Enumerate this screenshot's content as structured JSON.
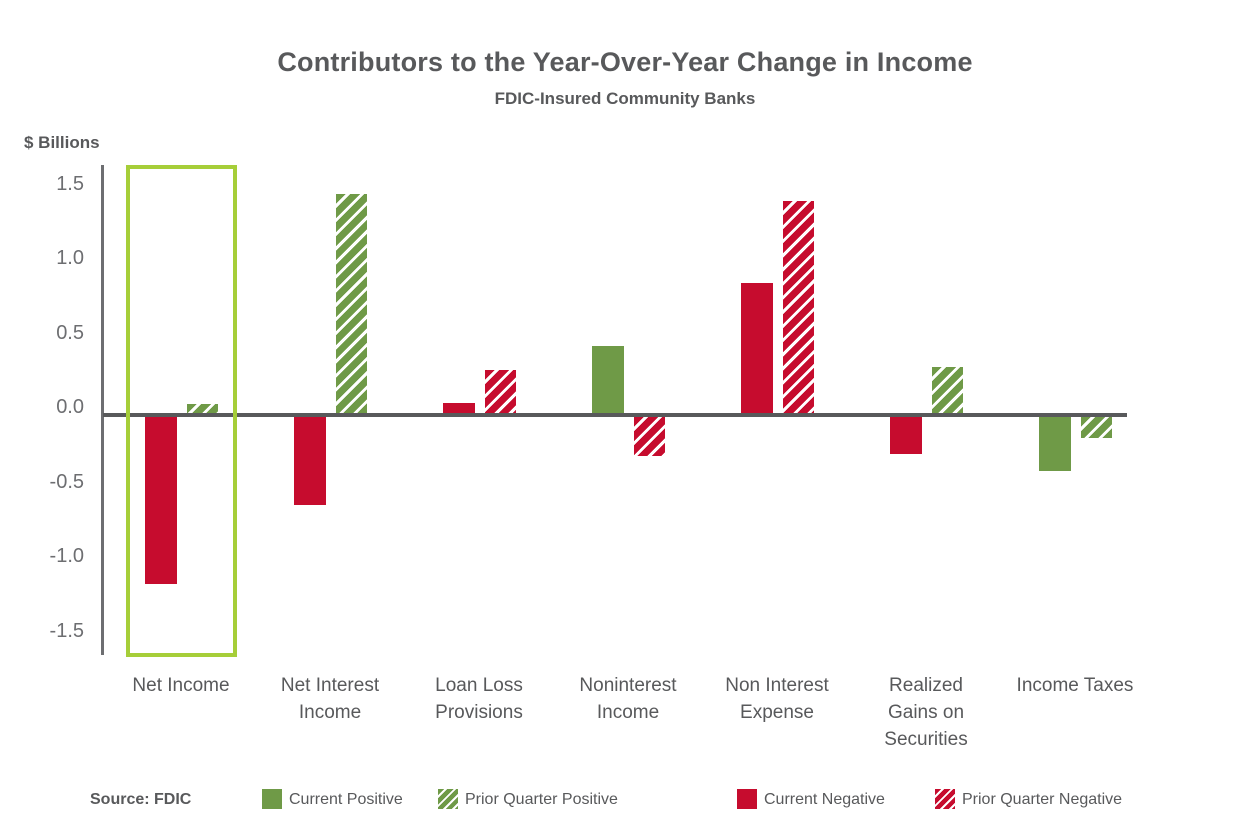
{
  "title": "Contributors to the Year-Over-Year Change in Income",
  "subtitle": "FDIC-Insured Community Banks",
  "source": "Source: FDIC",
  "colors": {
    "positive": "#6F9A47",
    "negative": "#C60C2E",
    "highlight_box": "#A6CE39",
    "zero_line": "#58595B",
    "axis_line": "#6D6E71",
    "text": "#58595B",
    "tick_text": "#6D6E71"
  },
  "chart_data": {
    "type": "bar",
    "title": "Contributors to the Year-Over-Year Change in Income",
    "subtitle": "FDIC-Insured Community Banks",
    "ylabel": "$ Billions",
    "xlabel": "",
    "ylim": [
      -1.65,
      1.65
    ],
    "grid": false,
    "legend_position": "bottom",
    "y_ticks": [
      {
        "value": 1.5,
        "label": "1.5"
      },
      {
        "value": 1.0,
        "label": "1.0"
      },
      {
        "value": 0.5,
        "label": "0.5"
      },
      {
        "value": 0.0,
        "label": "0.0"
      },
      {
        "value": -0.5,
        "label": "-0.5"
      },
      {
        "value": -1.0,
        "label": "-1.0"
      },
      {
        "value": -1.5,
        "label": "-1.5"
      }
    ],
    "categories": [
      "Net Income",
      "Net Interest Income",
      "Loan Loss Provisions",
      "Noninterest Income",
      "Non Interest Expense",
      "Realized Gains on Securities",
      "Income Taxes"
    ],
    "groups": [
      {
        "category": "Net Income",
        "label_lines": [
          "Net Income"
        ],
        "current": {
          "value": -1.12,
          "sentiment": "negative"
        },
        "prior": {
          "value": 0.06,
          "sentiment": "positive"
        }
      },
      {
        "category": "Net Interest Income",
        "label_lines": [
          "Net Interest",
          "Income"
        ],
        "current": {
          "value": -0.59,
          "sentiment": "negative"
        },
        "prior": {
          "value": 1.47,
          "sentiment": "positive"
        }
      },
      {
        "category": "Loan Loss Provisions",
        "label_lines": [
          "Loan Loss",
          "Provisions"
        ],
        "current": {
          "value": 0.07,
          "sentiment": "negative"
        },
        "prior": {
          "value": 0.29,
          "sentiment": "negative"
        }
      },
      {
        "category": "Noninterest Income",
        "label_lines": [
          "Noninterest",
          "Income"
        ],
        "current": {
          "value": 0.45,
          "sentiment": "positive"
        },
        "prior": {
          "value": -0.26,
          "sentiment": "negative"
        }
      },
      {
        "category": "Non Interest Expense",
        "label_lines": [
          "Non Interest",
          "Expense"
        ],
        "current": {
          "value": 0.87,
          "sentiment": "negative"
        },
        "prior": {
          "value": 1.42,
          "sentiment": "negative"
        }
      },
      {
        "category": "Realized Gains on Securities",
        "label_lines": [
          "Realized",
          "Gains on",
          "Securities"
        ],
        "current": {
          "value": -0.25,
          "sentiment": "negative"
        },
        "prior": {
          "value": 0.31,
          "sentiment": "positive"
        }
      },
      {
        "category": "Income Taxes",
        "label_lines": [
          "Income Taxes"
        ],
        "current": {
          "value": -0.36,
          "sentiment": "positive"
        },
        "prior": {
          "value": -0.14,
          "sentiment": "positive"
        }
      }
    ],
    "legend": [
      {
        "label": "Current Positive",
        "sentiment": "positive",
        "hatched": false
      },
      {
        "label": "Prior Quarter Positive",
        "sentiment": "positive",
        "hatched": true
      },
      {
        "label": "Current Negative",
        "sentiment": "negative",
        "hatched": false
      },
      {
        "label": "Prior Quarter Negative",
        "sentiment": "negative",
        "hatched": true
      }
    ],
    "annotations": [
      {
        "type": "highlight-box",
        "category": "Net Income"
      }
    ]
  }
}
